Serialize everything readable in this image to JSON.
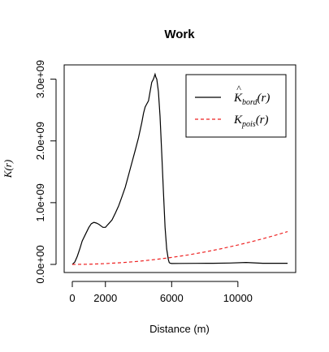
{
  "chart_data": {
    "type": "line",
    "title": "Work",
    "xlabel": "Distance (m)",
    "ylabel": "K(r)",
    "xlim": [
      0,
      13000
    ],
    "ylim": [
      0,
      3100000000
    ],
    "x_ticks": [
      0,
      2000,
      6000,
      10000
    ],
    "x_tick_labels": [
      "0",
      "2000",
      "6000",
      "10000"
    ],
    "y_ticks": [
      0,
      1000000000,
      2000000000,
      3000000000
    ],
    "y_tick_labels": [
      "0.0e+00",
      "1.0e+09",
      "2.0e+09",
      "3.0e+09"
    ],
    "legend_position": "top-right",
    "series": [
      {
        "name": "K̂_bord(r)",
        "legend": {
          "main": "K",
          "hat": "^",
          "sub": "bord",
          "arg": "(r)"
        },
        "color": "#000000",
        "dash": "solid",
        "x": [
          0,
          150,
          300,
          450,
          600,
          800,
          1000,
          1150,
          1300,
          1450,
          1600,
          1750,
          1850,
          2000,
          2100,
          2200,
          2400,
          2600,
          2800,
          3000,
          3200,
          3400,
          3600,
          3800,
          4000,
          4200,
          4300,
          4400,
          4500,
          4600,
          4700,
          4800,
          4900,
          5000,
          5050,
          5100,
          5200,
          5300,
          5400,
          5500,
          5600,
          5700,
          5800,
          5850,
          5900,
          6000,
          6500,
          7500,
          8500,
          9500,
          10500,
          11500,
          12500,
          13000
        ],
        "y": [
          0,
          40000000,
          130000000,
          250000000,
          380000000,
          490000000,
          600000000,
          660000000,
          680000000,
          670000000,
          650000000,
          620000000,
          600000000,
          600000000,
          630000000,
          660000000,
          720000000,
          830000000,
          950000000,
          1100000000,
          1250000000,
          1450000000,
          1650000000,
          1850000000,
          2050000000,
          2300000000,
          2450000000,
          2550000000,
          2600000000,
          2650000000,
          2800000000,
          2950000000,
          3000000000,
          3080000000,
          3030000000,
          3000000000,
          2800000000,
          2400000000,
          1800000000,
          1200000000,
          600000000,
          250000000,
          80000000,
          30000000,
          20000000,
          15000000,
          16000000,
          17000000,
          18000000,
          22000000,
          32000000,
          18000000,
          18000000,
          18000000
        ]
      },
      {
        "name": "K_pois(r)",
        "legend": {
          "main": "K",
          "sub": "pois",
          "arg": "(r)"
        },
        "color": "#ee2222",
        "dash": "dashed",
        "x": [
          0,
          1000,
          2000,
          3000,
          4000,
          5000,
          6000,
          7000,
          8000,
          9000,
          10000,
          11000,
          12000,
          13000
        ],
        "y": [
          0,
          3100000,
          12600000,
          28300000,
          50300000,
          78500000,
          113100000,
          153900000,
          201100000,
          254500000,
          314200000,
          380100000,
          452400000,
          530900000
        ]
      }
    ]
  }
}
